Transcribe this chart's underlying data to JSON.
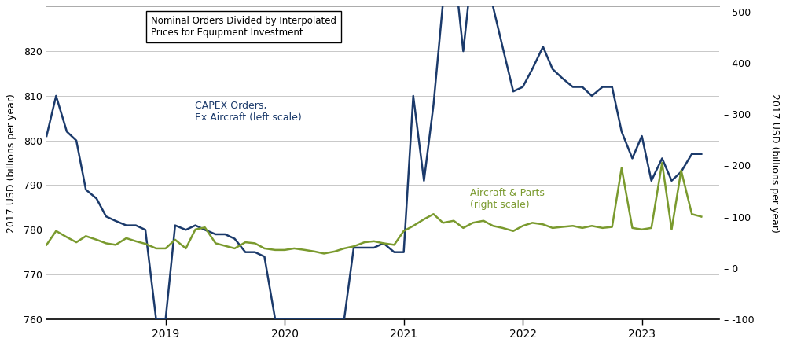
{
  "legend_text": "Nominal Orders Divided by Interpolated\nPrices for Equipment Investment",
  "left_ylabel": "2017 USD (billions per year)",
  "right_ylabel": "2017 USD (billions per year)",
  "capex_label": "CAPEX Orders,\nEx Aircraft (left scale)",
  "aircraft_label": "Aircraft & Parts\n(right scale)",
  "capex_color": "#1b3a6b",
  "aircraft_color": "#7a9a2e",
  "left_ylim": [
    760,
    830
  ],
  "right_ylim": [
    -100,
    510
  ],
  "left_yticks": [
    760,
    770,
    780,
    790,
    800,
    810,
    820
  ],
  "right_yticks": [
    -100,
    0,
    100,
    200,
    300,
    400,
    500
  ],
  "xlim": [
    2018.0,
    2023.65
  ],
  "xticks": [
    2019,
    2020,
    2021,
    2022,
    2023
  ],
  "background_color": "#ffffff",
  "capex_x": [
    2018.0,
    2018.08,
    2018.17,
    2018.25,
    2018.33,
    2018.42,
    2018.5,
    2018.58,
    2018.67,
    2018.75,
    2018.83,
    2018.92,
    2019.0,
    2019.08,
    2019.17,
    2019.25,
    2019.33,
    2019.42,
    2019.5,
    2019.58,
    2019.67,
    2019.75,
    2019.83,
    2019.92,
    2020.0,
    2020.08,
    2020.17,
    2020.25,
    2020.33,
    2020.42,
    2020.5,
    2020.58,
    2020.67,
    2020.75,
    2020.83,
    2020.92,
    2021.0,
    2021.08,
    2021.17,
    2021.25,
    2021.33,
    2021.42,
    2021.5,
    2021.58,
    2021.67,
    2021.75,
    2021.83,
    2021.92,
    2022.0,
    2022.08,
    2022.17,
    2022.25,
    2022.33,
    2022.42,
    2022.5,
    2022.58,
    2022.67,
    2022.75,
    2022.83,
    2022.92,
    2023.0,
    2023.08,
    2023.17,
    2023.25,
    2023.33,
    2023.42,
    2023.5
  ],
  "capex_y": [
    801,
    810,
    802,
    800,
    789,
    787,
    783,
    782,
    781,
    781,
    780,
    760,
    760,
    781,
    780,
    781,
    780,
    779,
    779,
    778,
    775,
    775,
    774,
    760,
    760,
    760,
    760,
    760,
    760,
    760,
    760,
    776,
    776,
    776,
    777,
    775,
    775,
    810,
    791,
    808,
    831,
    840,
    820,
    840,
    851,
    830,
    821,
    811,
    812,
    816,
    821,
    816,
    814,
    812,
    812,
    810,
    812,
    812,
    802,
    796,
    801,
    791,
    796,
    791,
    793,
    797,
    797
  ],
  "aircraft_x": [
    2018.0,
    2018.08,
    2018.17,
    2018.25,
    2018.33,
    2018.42,
    2018.5,
    2018.58,
    2018.67,
    2018.75,
    2018.83,
    2018.92,
    2019.0,
    2019.08,
    2019.17,
    2019.25,
    2019.33,
    2019.42,
    2019.5,
    2019.58,
    2019.67,
    2019.75,
    2019.83,
    2019.92,
    2020.0,
    2020.08,
    2020.17,
    2020.25,
    2020.33,
    2020.42,
    2020.5,
    2020.58,
    2020.67,
    2020.75,
    2020.83,
    2020.92,
    2021.0,
    2021.08,
    2021.17,
    2021.25,
    2021.33,
    2021.42,
    2021.5,
    2021.58,
    2021.67,
    2021.75,
    2021.83,
    2021.92,
    2022.0,
    2022.08,
    2022.17,
    2022.25,
    2022.33,
    2022.42,
    2022.5,
    2022.58,
    2022.67,
    2022.75,
    2022.83,
    2022.92,
    2023.0,
    2023.08,
    2023.17,
    2023.25,
    2023.33,
    2023.42,
    2023.5
  ],
  "aircraft_y": [
    45,
    72,
    60,
    50,
    62,
    55,
    48,
    45,
    58,
    52,
    47,
    38,
    38,
    55,
    38,
    75,
    79,
    48,
    43,
    38,
    50,
    48,
    38,
    35,
    35,
    38,
    35,
    32,
    28,
    32,
    38,
    42,
    50,
    52,
    48,
    45,
    72,
    82,
    95,
    105,
    88,
    92,
    78,
    88,
    92,
    82,
    78,
    72,
    82,
    88,
    85,
    78,
    80,
    82,
    78,
    82,
    78,
    80,
    195,
    78,
    75,
    78,
    205,
    75,
    190,
    105,
    100
  ]
}
